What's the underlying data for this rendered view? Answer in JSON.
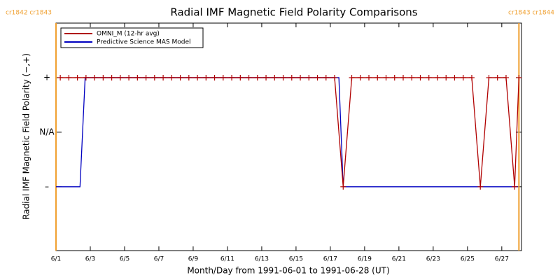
{
  "chart_data": {
    "type": "line",
    "title": "Radial IMF Magnetic Field Polarity Comparisons",
    "xlabel": "Month/Day from 1991-06-01 to 1991-06-28 (UT)",
    "ylabel": "Radial IMF Magnetic Field Polarity (−,+)",
    "xlim": [
      0,
      27.15
    ],
    "ylim": [
      -2.17,
      2
    ],
    "xticks": [
      {
        "value": 0,
        "label": "6/1"
      },
      {
        "value": 2,
        "label": "6/3"
      },
      {
        "value": 4,
        "label": "6/5"
      },
      {
        "value": 6,
        "label": "6/7"
      },
      {
        "value": 8,
        "label": "6/9"
      },
      {
        "value": 10,
        "label": "6/11"
      },
      {
        "value": 12,
        "label": "6/13"
      },
      {
        "value": 14,
        "label": "6/15"
      },
      {
        "value": 16,
        "label": "6/17"
      },
      {
        "value": 18,
        "label": "6/19"
      },
      {
        "value": 20,
        "label": "6/21"
      },
      {
        "value": 22,
        "label": "6/23"
      },
      {
        "value": 24,
        "label": "6/25"
      },
      {
        "value": 26,
        "label": "6/27"
      }
    ],
    "yticks": [
      {
        "value": 1,
        "label": "+"
      },
      {
        "value": 0,
        "label": "N/A"
      },
      {
        "value": -1,
        "label": "–"
      }
    ],
    "legend": "upper left",
    "series": [
      {
        "name": "OMNI_M (12-hr avg)",
        "color": "#b00000",
        "marker": "+",
        "x": [
          0.25,
          0.75,
          1.25,
          1.75,
          2.25,
          2.75,
          3.25,
          3.75,
          4.25,
          4.75,
          5.25,
          5.75,
          6.25,
          6.75,
          7.25,
          7.75,
          8.25,
          8.75,
          9.25,
          9.75,
          10.25,
          10.75,
          11.25,
          11.75,
          12.25,
          12.75,
          13.25,
          13.75,
          14.25,
          14.75,
          15.25,
          15.75,
          16.25,
          16.75,
          17.25,
          17.75,
          18.25,
          18.75,
          19.25,
          19.75,
          20.25,
          20.75,
          21.25,
          21.75,
          22.25,
          22.75,
          23.25,
          23.75,
          24.25,
          24.75,
          25.25,
          25.75,
          26.25,
          26.75,
          27.0
        ],
        "values": [
          1,
          1,
          1,
          1,
          1,
          1,
          1,
          1,
          1,
          1,
          1,
          1,
          1,
          1,
          1,
          1,
          1,
          1,
          1,
          1,
          1,
          1,
          1,
          1,
          1,
          1,
          1,
          1,
          1,
          1,
          1,
          1,
          1,
          -1,
          1,
          1,
          1,
          1,
          1,
          1,
          1,
          1,
          1,
          1,
          1,
          1,
          1,
          1,
          1,
          -1,
          1,
          1,
          1,
          -1,
          1
        ]
      },
      {
        "name": "Predictive Science MAS Model",
        "color": "#0000c0",
        "x": [
          0,
          1.4,
          1.7,
          16.5,
          16.75,
          26.95
        ],
        "values": [
          -1,
          -1,
          1,
          1,
          -1,
          -1
        ]
      }
    ],
    "annotations": [
      {
        "x": 0,
        "label": "cr1842 cr1843",
        "color": "#f0a030"
      },
      {
        "x": 27.0,
        "label": "cr1843 cr1844",
        "color": "#f0a030"
      }
    ]
  }
}
